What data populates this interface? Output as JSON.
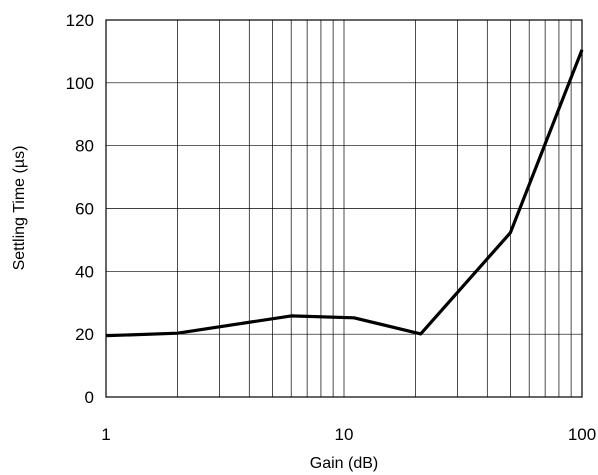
{
  "chart_data": {
    "type": "line",
    "xlabel": "Gain (dB)",
    "ylabel": "Settling Time (µs)",
    "xscale": "log",
    "xlim": [
      1,
      100
    ],
    "ylim": [
      0,
      120
    ],
    "xticks": [
      1,
      10,
      100
    ],
    "xtick_labels": [
      "1",
      "10",
      "100"
    ],
    "yticks": [
      0,
      20,
      40,
      60,
      80,
      100,
      120
    ],
    "ytick_labels": [
      "0",
      "20",
      "40",
      "60",
      "80",
      "100",
      "120"
    ],
    "grid": true,
    "legend": "none",
    "line_color": "#000000",
    "series": [
      {
        "x": [
          1,
          2,
          6,
          11,
          21,
          50,
          100
        ],
        "y": [
          19.5,
          20.3,
          25.8,
          25.2,
          20.1,
          52.3,
          110.5
        ]
      }
    ]
  }
}
